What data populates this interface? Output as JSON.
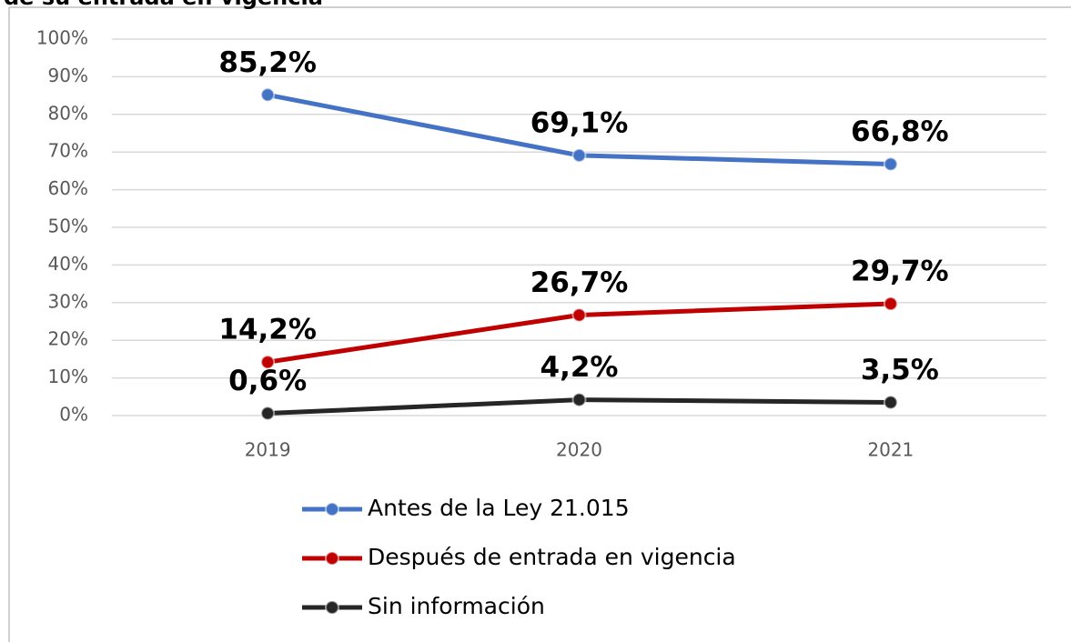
{
  "chart_data": {
    "type": "line",
    "title": "de su entrada en vigencia",
    "categories": [
      "2019",
      "2020",
      "2021"
    ],
    "series": [
      {
        "name": "Antes de la Ley 21.015",
        "color": "#4472c4",
        "values": [
          85.2,
          69.1,
          66.8
        ],
        "value_labels": [
          "85,2%",
          "69,1%",
          "66,8%"
        ]
      },
      {
        "name": "Después de entrada en vigencia",
        "color": "#c00000",
        "values": [
          14.2,
          26.7,
          29.7
        ],
        "value_labels": [
          "14,2%",
          "26,7%",
          "29,7%"
        ]
      },
      {
        "name": "Sin información",
        "color": "#262626",
        "values": [
          0.6,
          4.2,
          3.5
        ],
        "value_labels": [
          "0,6%",
          "4,2%",
          "3,5%"
        ]
      }
    ],
    "ylim": [
      0,
      100
    ],
    "yticks": [
      {
        "value": 0,
        "label": "0%"
      },
      {
        "value": 10,
        "label": "10%"
      },
      {
        "value": 20,
        "label": "20%"
      },
      {
        "value": 30,
        "label": "30%"
      },
      {
        "value": 40,
        "label": "40%"
      },
      {
        "value": 50,
        "label": "50%"
      },
      {
        "value": 60,
        "label": "60%"
      },
      {
        "value": 70,
        "label": "70%"
      },
      {
        "value": 80,
        "label": "80%"
      },
      {
        "value": 90,
        "label": "90%"
      },
      {
        "value": 100,
        "label": "100%"
      }
    ],
    "grid": true
  }
}
